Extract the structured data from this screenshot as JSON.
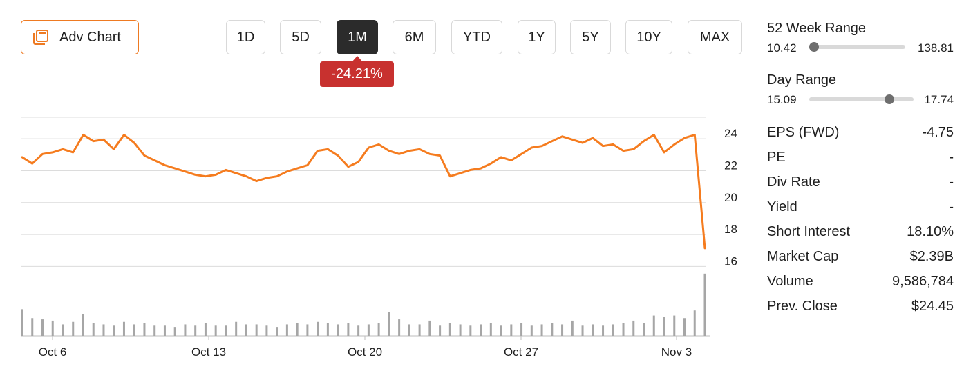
{
  "toolbar": {
    "adv_chart_label": "Adv Chart",
    "ranges": [
      {
        "label": "1D",
        "active": false
      },
      {
        "label": "5D",
        "active": false
      },
      {
        "label": "1M",
        "active": true
      },
      {
        "label": "6M",
        "active": false
      },
      {
        "label": "YTD",
        "active": false
      },
      {
        "label": "1Y",
        "active": false
      },
      {
        "label": "5Y",
        "active": false
      },
      {
        "label": "10Y",
        "active": false
      },
      {
        "label": "MAX",
        "active": false
      }
    ],
    "change_badge": "-24.21%"
  },
  "colors": {
    "accent": "#ee7a22",
    "negative": "#c8312f",
    "line": "#f57c1f",
    "volume": "#a6a6a6"
  },
  "chart_data": {
    "type": "line",
    "title": "",
    "xlabel": "",
    "ylabel": "",
    "x_tick_labels": [
      "Oct 6",
      "Oct 13",
      "Oct 20",
      "Oct 27",
      "Nov 3"
    ],
    "y_tick_labels": [
      "24",
      "22",
      "20",
      "18",
      "16"
    ],
    "ylim": [
      15.5,
      25.0
    ],
    "grid": true,
    "series": [
      {
        "values": [
          22.5,
          22.1,
          22.7,
          22.8,
          23.0,
          22.8,
          23.9,
          23.5,
          23.6,
          23.0,
          23.9,
          23.4,
          22.6,
          22.3,
          22.0,
          21.8,
          21.6,
          21.4,
          21.3,
          21.4,
          21.7,
          21.5,
          21.3,
          21.0,
          21.2,
          21.3,
          21.6,
          21.8,
          22.0,
          22.9,
          23.0,
          22.6,
          21.9,
          22.2,
          23.1,
          23.3,
          22.9,
          22.7,
          22.9,
          23.0,
          22.7,
          22.6,
          21.3,
          21.5,
          21.7,
          21.8,
          22.1,
          22.5,
          22.3,
          22.7,
          23.1,
          23.2,
          23.5,
          23.8,
          23.6,
          23.4,
          23.7,
          23.2,
          23.3,
          22.9,
          23.0,
          23.5,
          23.9,
          22.8,
          23.3,
          23.7,
          23.9,
          16.8
        ]
      }
    ],
    "volume": {
      "values": [
        2.1,
        1.4,
        1.3,
        1.2,
        0.9,
        1.1,
        1.7,
        1.0,
        0.9,
        0.8,
        1.1,
        0.9,
        1.0,
        0.8,
        0.8,
        0.7,
        0.9,
        0.8,
        1.0,
        0.8,
        0.8,
        1.1,
        0.9,
        0.9,
        0.8,
        0.7,
        0.9,
        1.0,
        0.9,
        1.1,
        1.0,
        0.9,
        1.0,
        0.8,
        0.9,
        1.0,
        1.9,
        1.3,
        0.9,
        0.9,
        1.2,
        0.8,
        1.0,
        0.9,
        0.8,
        0.9,
        1.0,
        0.8,
        0.9,
        1.0,
        0.8,
        0.9,
        1.0,
        0.9,
        1.2,
        0.8,
        0.9,
        0.8,
        0.9,
        1.0,
        1.2,
        1.0,
        1.6,
        1.5,
        1.6,
        1.4,
        2.0,
        4.9
      ],
      "max": 5.0
    }
  },
  "stats": {
    "week52": {
      "title": "52 Week Range",
      "low": "10.42",
      "high": "138.81",
      "position": 0.06
    },
    "day": {
      "title": "Day Range",
      "low": "15.09",
      "high": "17.74",
      "position": 0.77
    },
    "rows": [
      {
        "label": "EPS (FWD)",
        "value": "-4.75"
      },
      {
        "label": "PE",
        "value": "-"
      },
      {
        "label": "Div Rate",
        "value": "-"
      },
      {
        "label": "Yield",
        "value": "-"
      },
      {
        "label": "Short Interest",
        "value": "18.10%"
      },
      {
        "label": "Market Cap",
        "value": "$2.39B"
      },
      {
        "label": "Volume",
        "value": "9,586,784"
      },
      {
        "label": "Prev. Close",
        "value": "$24.45"
      }
    ]
  }
}
